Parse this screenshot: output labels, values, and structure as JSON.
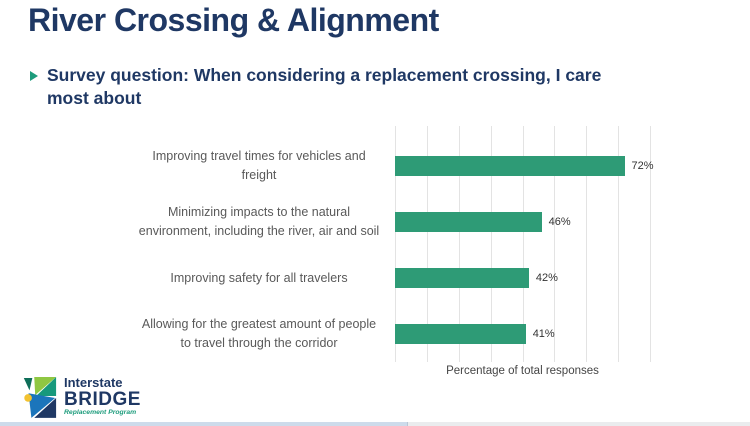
{
  "slide": {
    "title": "River Crossing & Alignment",
    "subtitle": "Survey question: When considering a replacement crossing, I care\nmost about",
    "title_color": "#1F3864",
    "accent_color": "#1D9C7C"
  },
  "chart_data": {
    "type": "bar",
    "orientation": "horizontal",
    "categories": [
      "Improving travel times for vehicles and\nfreight",
      "Minimizing impacts to the natural\nenvironment, including the river, air and soil",
      "Improving safety for all travelers",
      "Allowing for the greatest amount of people\nto travel through the corridor"
    ],
    "values": [
      72,
      46,
      42,
      41
    ],
    "value_labels": [
      "72%",
      "46%",
      "42%",
      "41%"
    ],
    "xlabel": "Percentage of total responses",
    "xlim": [
      0,
      80
    ],
    "gridline_interval": 10,
    "grid": true,
    "legend": "none",
    "bar_color": "#2E9B76",
    "gridline_color": "#E3E3E3",
    "label_color": "#595959",
    "value_label_color": "#333333"
  },
  "logo": {
    "line1": "Interstate",
    "line2": "BRIDGE",
    "line3": "Replacement Program",
    "icon_colors": {
      "green": "#8FC742",
      "teal": "#17997C",
      "dark_teal": "#0E6E59",
      "blue": "#1B75BB",
      "navy": "#1F3864",
      "yellow": "#F2C230"
    }
  }
}
